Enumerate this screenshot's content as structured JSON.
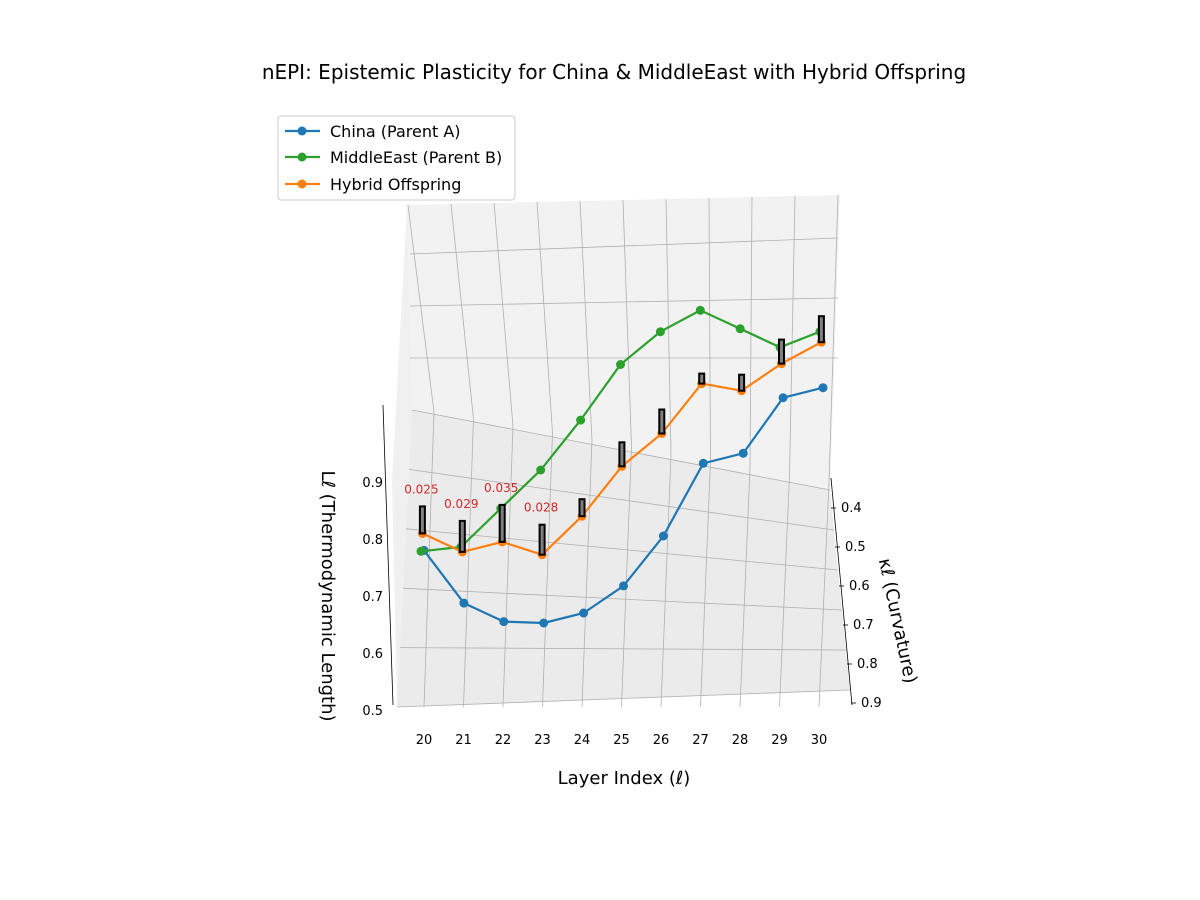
{
  "chart_data": {
    "type": "line",
    "title": "nEPI: Epistemic Plasticity for China & MiddleEast with Hybrid Offspring",
    "xlabel": "Layer Index (ℓ)",
    "ylabel": "κℓ (Curvature)",
    "zlabel": "Lℓ (Thermodynamic Length)",
    "x": [
      20,
      21,
      22,
      23,
      24,
      25,
      26,
      27,
      28,
      29,
      30
    ],
    "x_ticks": [
      "20",
      "21",
      "22",
      "23",
      "24",
      "25",
      "26",
      "27",
      "28",
      "29",
      "30"
    ],
    "y_ticks": [
      "0.4",
      "0.5",
      "0.6",
      "0.7",
      "0.8",
      "0.9"
    ],
    "z_ticks": [
      "0.5",
      "0.6",
      "0.7",
      "0.8",
      "0.9"
    ],
    "legend_position": "upper-left",
    "grid": true,
    "series": [
      {
        "name": "China (Parent A)",
        "color": "#1f77b4",
        "kappa": [
          0.6,
          0.62,
          0.64,
          0.66,
          0.68,
          0.7,
          0.72,
          0.74,
          0.76,
          0.78,
          0.8
        ],
        "length": [
          0.78,
          0.69,
          0.66,
          0.66,
          0.68,
          0.73,
          0.82,
          0.95,
          0.97,
          1.07,
          1.09
        ]
      },
      {
        "name": "MiddleEast (Parent B)",
        "color": "#2ca02c",
        "kappa": [
          0.45,
          0.47,
          0.49,
          0.51,
          0.53,
          0.55,
          0.57,
          0.59,
          0.61,
          0.63,
          0.65
        ],
        "length": [
          0.76,
          0.77,
          0.84,
          0.91,
          1.0,
          1.1,
          1.16,
          1.2,
          1.17,
          1.14,
          1.17
        ]
      },
      {
        "name": "Hybrid Offspring",
        "color": "#ff7f0e",
        "kappa": [
          0.52,
          0.54,
          0.56,
          0.58,
          0.6,
          0.62,
          0.64,
          0.66,
          0.68,
          0.7,
          0.72
        ],
        "length": [
          0.8,
          0.77,
          0.79,
          0.77,
          0.84,
          0.93,
          0.99,
          1.08,
          1.07,
          1.12,
          1.16
        ]
      }
    ],
    "plasticity_bars": [
      0.025,
      0.029,
      0.035,
      0.028,
      0.015,
      0.022,
      0.022,
      0.008,
      0.014,
      0.022,
      0.024
    ],
    "annotations": [
      "0.025",
      "0.029",
      "0.035",
      "0.028"
    ],
    "annotation_color": "#d62728"
  },
  "legend": [
    {
      "label": "China (Parent A)",
      "color": "#1f77b4"
    },
    {
      "label": "MiddleEast (Parent B)",
      "color": "#2ca02c"
    },
    {
      "label": "Hybrid Offspring",
      "color": "#ff7f0e"
    }
  ]
}
